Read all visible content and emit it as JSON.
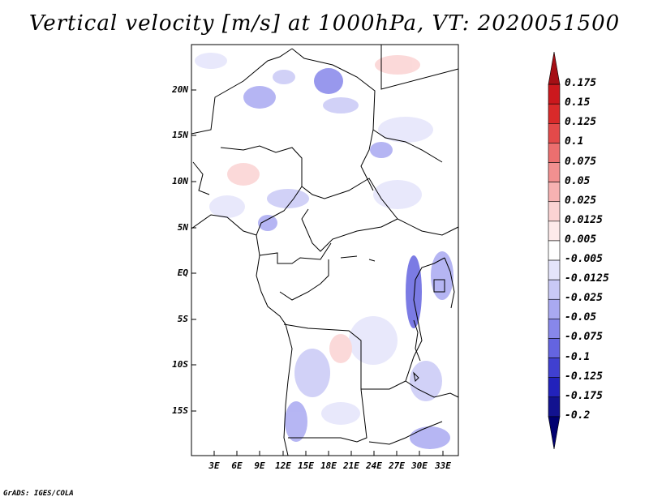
{
  "title": "Vertical velocity [m/s] at 1000hPa, VT: 2020051500",
  "lat_labels": [
    "20N",
    "15N",
    "10N",
    "5N",
    "EQ",
    "5S",
    "10S",
    "15S"
  ],
  "lon_labels": [
    "3E",
    "6E",
    "9E",
    "12E",
    "15E",
    "18E",
    "21E",
    "24E",
    "27E",
    "30E",
    "33E"
  ],
  "colorbar": {
    "labels": [
      "0.175",
      "0.15",
      "0.125",
      "0.1",
      "0.075",
      "0.05",
      "0.025",
      "0.0125",
      "0.005",
      "-0.005",
      "-0.0125",
      "-0.025",
      "-0.05",
      "-0.075",
      "-0.1",
      "-0.125",
      "-0.175",
      "-0.2"
    ],
    "colors": [
      "#a50f15",
      "#cb181d",
      "#d92a2a",
      "#e34a4a",
      "#ec6f6f",
      "#f29090",
      "#f7b2b2",
      "#fbd3d3",
      "#fdeaea",
      "#ffffff",
      "#e4e4fb",
      "#c9c9f6",
      "#a9a9f1",
      "#8787ea",
      "#6464e0",
      "#4040d0",
      "#2222bb",
      "#12128f",
      "#000070"
    ]
  },
  "credit": "GrADS: IGES/COLA"
}
